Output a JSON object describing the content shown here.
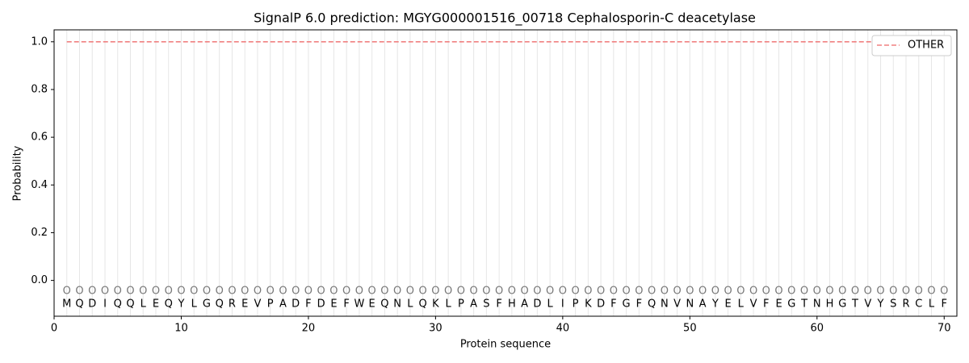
{
  "chart_data": {
    "type": "line",
    "title": "SignalP 6.0 prediction: MGYG000001516_00718 Cephalosporin-C deacetylase",
    "x_label": "Protein sequence",
    "y_label": "Probability",
    "x": [
      1,
      2,
      3,
      4,
      5,
      6,
      7,
      8,
      9,
      10,
      11,
      12,
      13,
      14,
      15,
      16,
      17,
      18,
      19,
      20,
      21,
      22,
      23,
      24,
      25,
      26,
      27,
      28,
      29,
      30,
      31,
      32,
      33,
      34,
      35,
      36,
      37,
      38,
      39,
      40,
      41,
      42,
      43,
      44,
      45,
      46,
      47,
      48,
      49,
      50,
      51,
      52,
      53,
      54,
      55,
      56,
      57,
      58,
      59,
      60,
      61,
      62,
      63,
      64,
      65,
      66,
      67,
      68,
      69,
      70
    ],
    "sequence": [
      "M",
      "Q",
      "D",
      "I",
      "Q",
      "Q",
      "L",
      "E",
      "Q",
      "Y",
      "L",
      "G",
      "Q",
      "R",
      "E",
      "V",
      "P",
      "A",
      "D",
      "F",
      "D",
      "E",
      "F",
      "W",
      "E",
      "Q",
      "N",
      "L",
      "Q",
      "K",
      "L",
      "P",
      "A",
      "S",
      "F",
      "H",
      "A",
      "D",
      "L",
      "I",
      "P",
      "K",
      "D",
      "F",
      "G",
      "F",
      "Q",
      "N",
      "V",
      "N",
      "A",
      "Y",
      "E",
      "L",
      "V",
      "F",
      "E",
      "G",
      "T",
      "N",
      "H",
      "G",
      "T",
      "V",
      "Y",
      "S",
      "R",
      "C",
      "L",
      "F"
    ],
    "labels": [
      "O",
      "O",
      "O",
      "O",
      "O",
      "O",
      "O",
      "O",
      "O",
      "O",
      "O",
      "O",
      "O",
      "O",
      "O",
      "O",
      "O",
      "O",
      "O",
      "O",
      "O",
      "O",
      "O",
      "O",
      "O",
      "O",
      "O",
      "O",
      "O",
      "O",
      "O",
      "O",
      "O",
      "O",
      "O",
      "O",
      "O",
      "O",
      "O",
      "O",
      "O",
      "O",
      "O",
      "O",
      "O",
      "O",
      "O",
      "O",
      "O",
      "O",
      "O",
      "O",
      "O",
      "O",
      "O",
      "O",
      "O",
      "O",
      "O",
      "O",
      "O",
      "O",
      "O",
      "O",
      "O",
      "O",
      "O",
      "O",
      "O",
      "O"
    ],
    "series": [
      {
        "name": "OTHER",
        "color": "#f08080",
        "values": [
          1,
          1,
          1,
          1,
          1,
          1,
          1,
          1,
          1,
          1,
          1,
          1,
          1,
          1,
          1,
          1,
          1,
          1,
          1,
          1,
          1,
          1,
          1,
          1,
          1,
          1,
          1,
          1,
          1,
          1,
          1,
          1,
          1,
          1,
          1,
          1,
          1,
          1,
          1,
          1,
          1,
          1,
          1,
          1,
          1,
          1,
          1,
          1,
          1,
          1,
          1,
          1,
          1,
          1,
          1,
          1,
          1,
          1,
          1,
          1,
          1,
          1,
          1,
          1,
          1,
          1,
          1,
          1,
          1,
          1
        ]
      }
    ],
    "xlim": [
      0,
      71
    ],
    "ylim": [
      -0.15,
      1.05
    ],
    "xticks": [
      0,
      10,
      20,
      30,
      40,
      50,
      60,
      70
    ],
    "yticks": [
      {
        "value": 0,
        "label": "0.0"
      },
      {
        "value": 0.2,
        "label": "0.2"
      },
      {
        "value": 0.4,
        "label": "0.4"
      },
      {
        "value": 0.6,
        "label": "0.6"
      },
      {
        "value": 0.8,
        "label": "0.8"
      },
      {
        "value": 1,
        "label": "1.0"
      }
    ],
    "legend": "upper right"
  }
}
